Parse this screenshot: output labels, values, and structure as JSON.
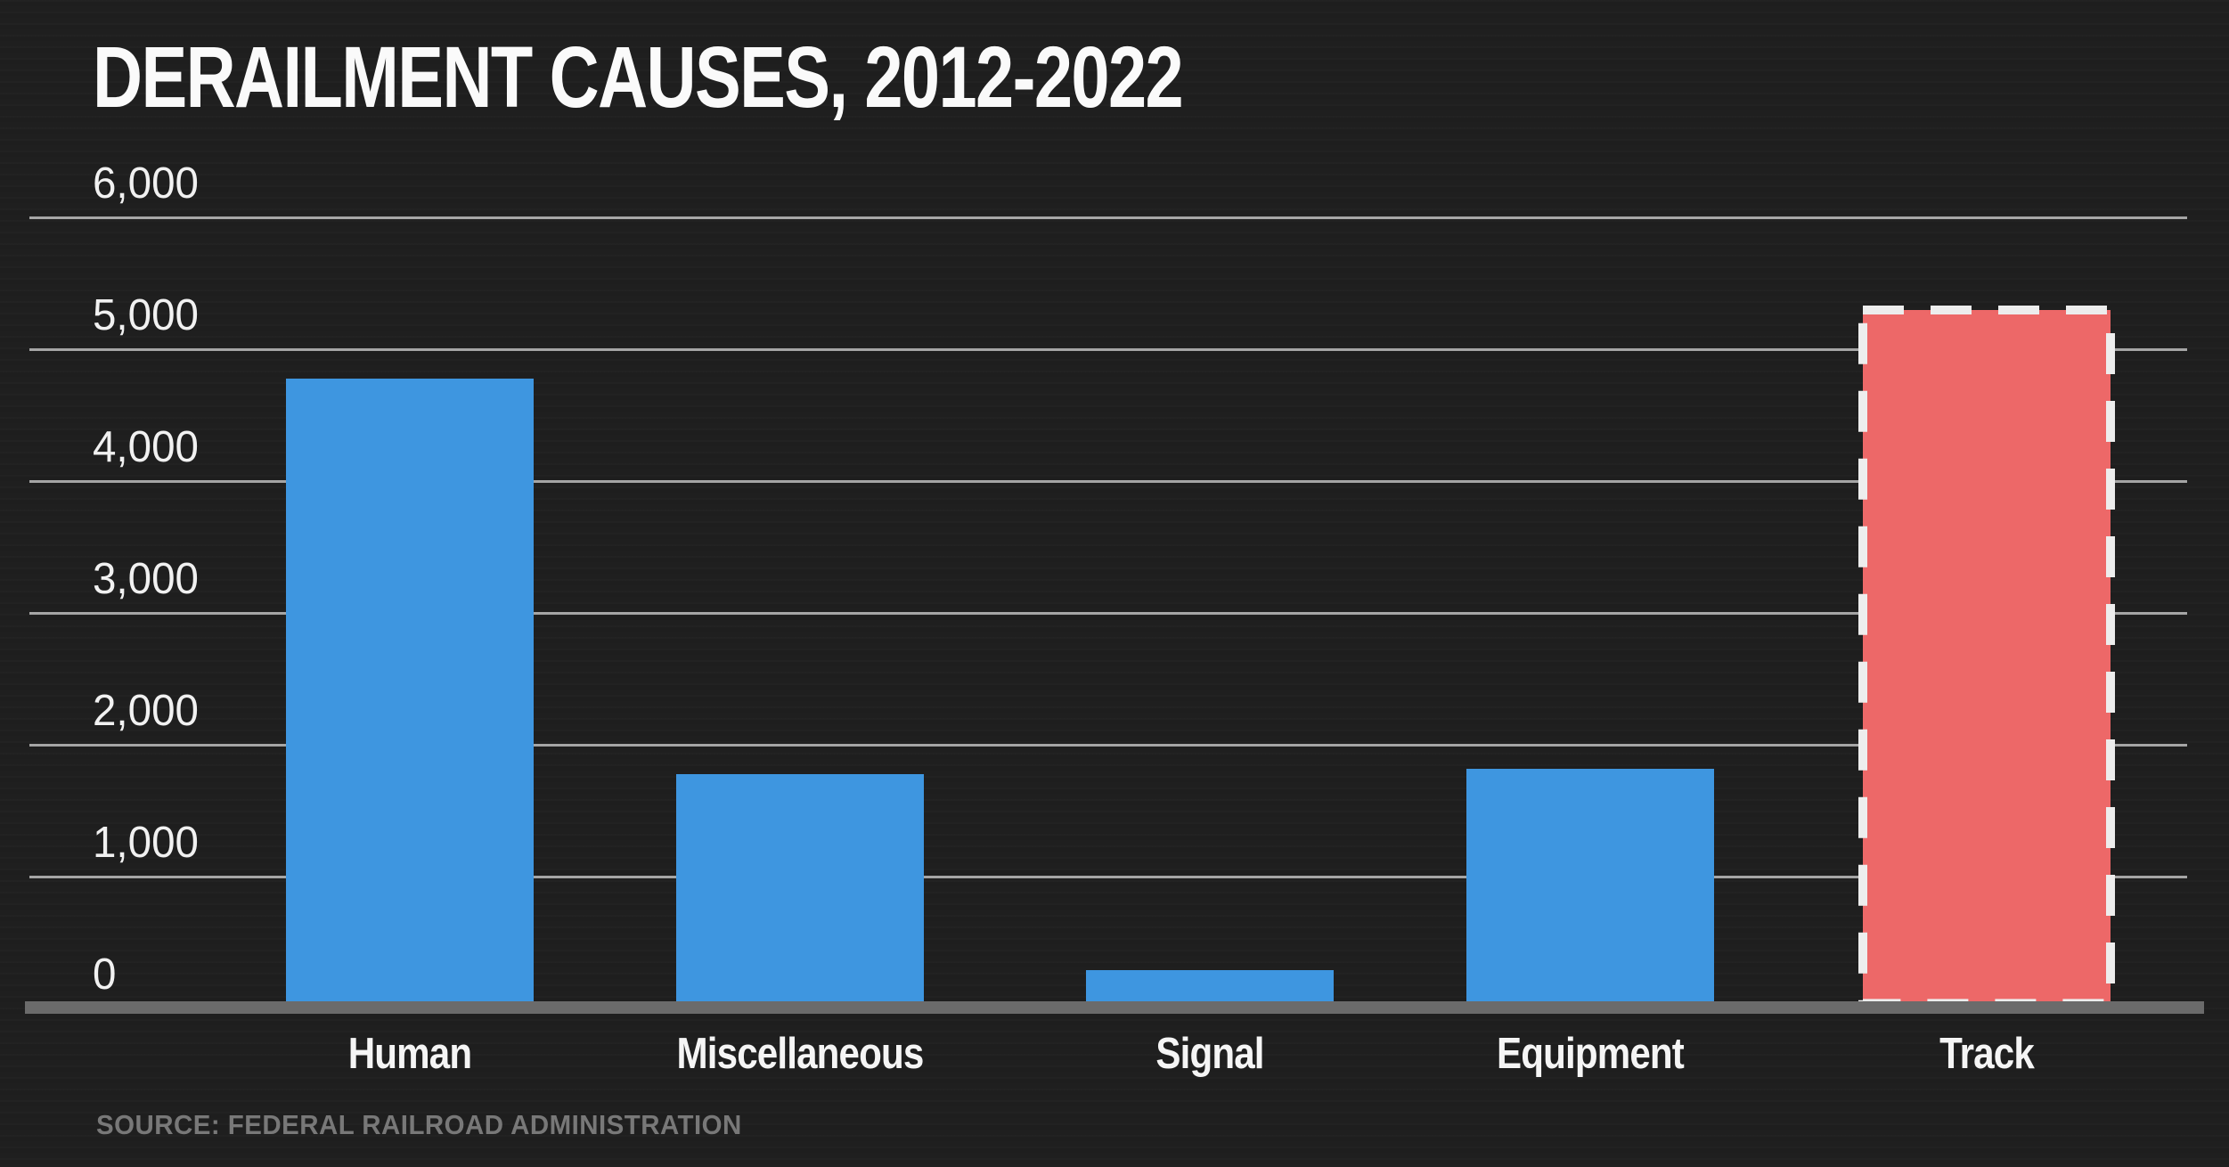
{
  "chart": {
    "title": "DERAILMENT CAUSES, 2012-2022",
    "source": "SOURCE: FEDERAL RAILROAD ADMINISTRATION"
  },
  "chart_data": {
    "type": "bar",
    "title": "DERAILMENT CAUSES, 2012-2022",
    "source": "SOURCE: FEDERAL RAILROAD ADMINISTRATION",
    "categories": [
      "Human",
      "Miscellaneous",
      "Signal",
      "Equipment",
      "Track"
    ],
    "values": [
      4780,
      1780,
      290,
      1820,
      5300
    ],
    "xlabel": "",
    "ylabel": "",
    "ylim": [
      0,
      6000
    ],
    "yticks": [
      0,
      1000,
      2000,
      3000,
      4000,
      5000,
      6000
    ],
    "grid": true,
    "legend": "none",
    "colors": {
      "bar": "#3E96E0",
      "highlight_bar": "#ED6868",
      "highlight_border": "#EDEDED",
      "background": "#1F1F1F",
      "gridline": "#BDBDBD",
      "axis_line": "#6B6B6B",
      "title_text": "#FAFAFA",
      "tick_text": "#F1F1F1",
      "source_text": "#787878"
    },
    "highlighted_category": "Track"
  }
}
